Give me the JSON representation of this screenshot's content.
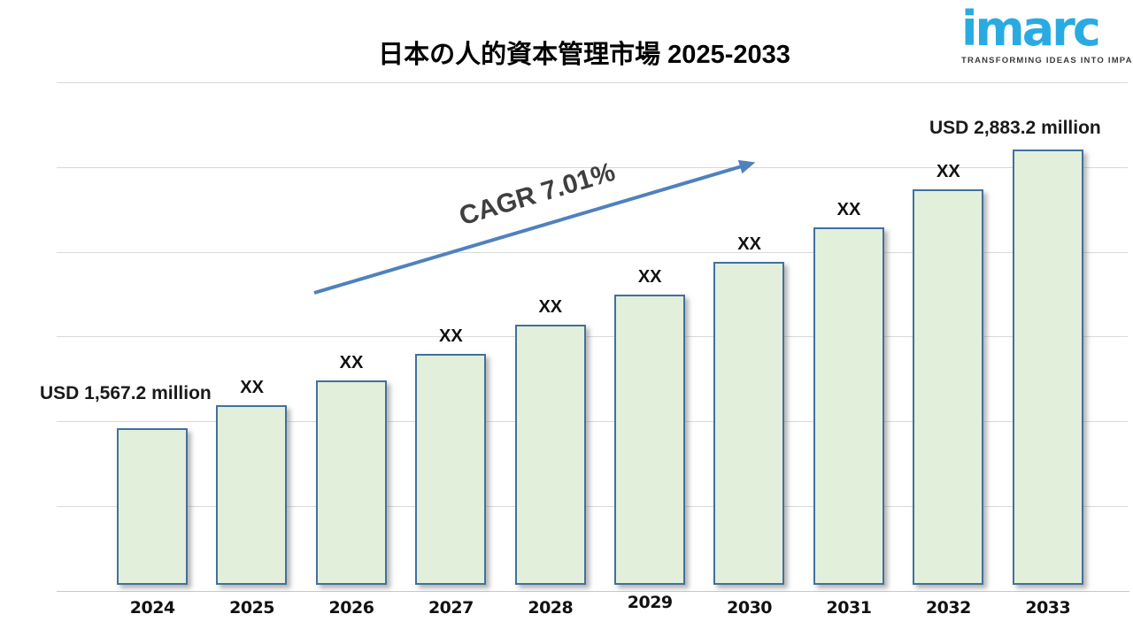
{
  "header": {
    "title": "日本の人的資本管理市場 2025-2033"
  },
  "logo": {
    "brand": "imarc",
    "tagline": "TRANSFORMING IDEAS INTO IMPACT",
    "brand_color": "#29abe2",
    "tagline_color": "#3a3a3a"
  },
  "annotation": {
    "cagr_text": "CAGR 7.01%",
    "arrow_color": "#4f81bd",
    "text_color": "#3f3f3f"
  },
  "chart_data": {
    "type": "bar",
    "title": "日本の人的資本管理市場 2025-2033",
    "categories": [
      "2024",
      "2025",
      "2026",
      "2027",
      "2028",
      "2029",
      "2030",
      "2031",
      "2032",
      "2033"
    ],
    "values": [
      1567.2,
      1677.1,
      1794.6,
      1920.4,
      2055.0,
      2199.1,
      2353.2,
      2518.2,
      2694.7,
      2883.2
    ],
    "values_estimated_from_cagr": true,
    "bar_labels": [
      "USD 1,567.2 million",
      "XX",
      "XX",
      "XX",
      "XX",
      "XX",
      "XX",
      "XX",
      "XX",
      "USD 2,883.2 million"
    ],
    "cagr": "7.01%",
    "xlabel": "",
    "ylabel": "",
    "ylim": [
      800,
      3200
    ],
    "gridline_step": 400,
    "grid": true,
    "legend": false,
    "colors": {
      "bar_fill": "#e2efda",
      "bar_border": "#41719c",
      "gridline": "#d9d9d9",
      "axis": "#c9c9c9",
      "label": "#111111"
    }
  }
}
